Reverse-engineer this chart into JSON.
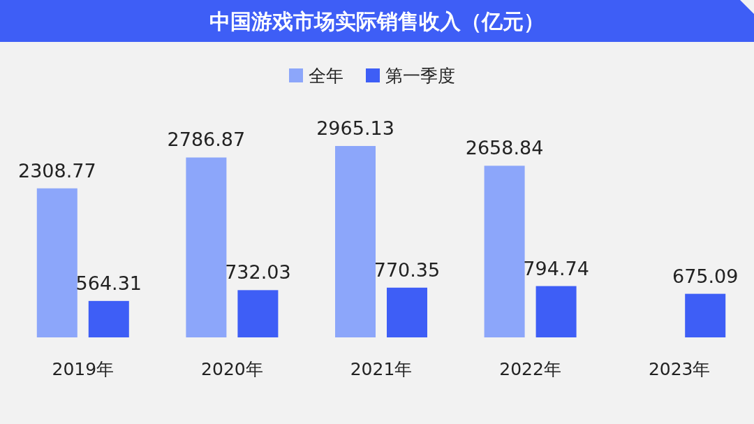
{
  "chart_data": {
    "type": "bar",
    "title": "中国游戏市场实际销售收入（亿元）",
    "categories": [
      "2019年",
      "2020年",
      "2021年",
      "2022年",
      "2023年"
    ],
    "series": [
      {
        "name": "全年",
        "color": "#8ca6fa",
        "values": [
          2308.77,
          2786.87,
          2965.13,
          2658.84,
          null
        ]
      },
      {
        "name": "第一季度",
        "color": "#3e5ef6",
        "values": [
          564.31,
          732.03,
          770.35,
          794.74,
          675.09
        ]
      }
    ],
    "data_labels": true,
    "legend": "top"
  }
}
